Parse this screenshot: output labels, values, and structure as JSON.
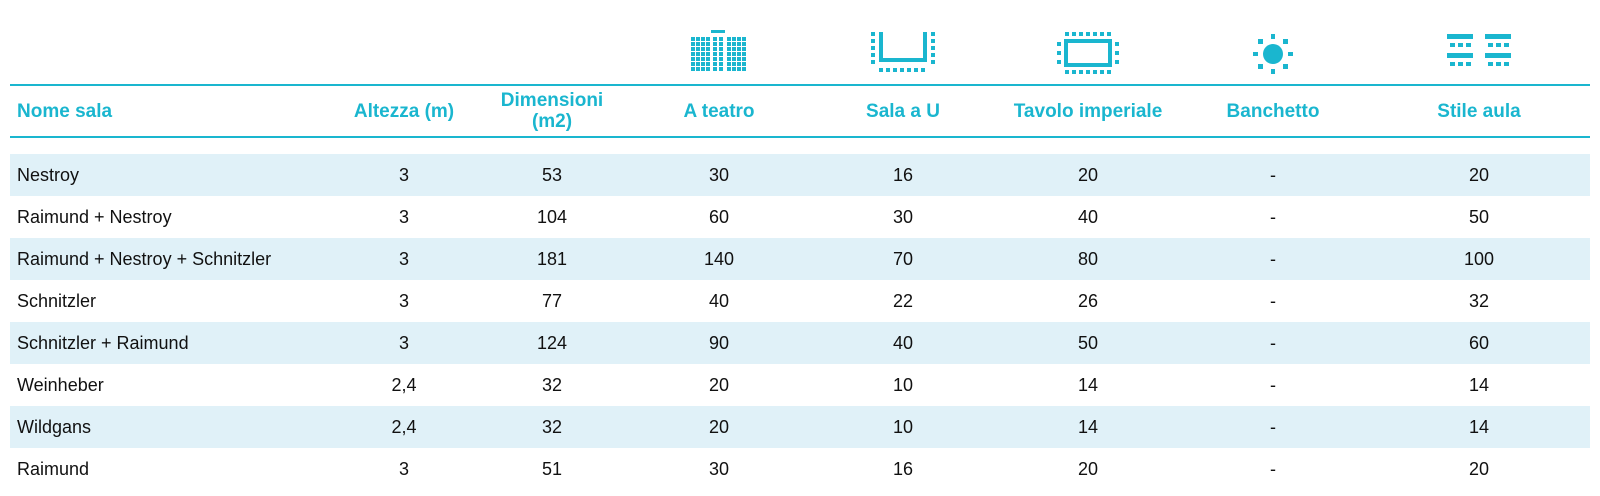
{
  "colors": {
    "accent": "#1ab6cf",
    "stripe": "#e0f1f8"
  },
  "icons": [
    "theatre-icon",
    "u-shape-icon",
    "boardroom-icon",
    "banquet-icon",
    "classroom-icon"
  ],
  "headers": [
    "Nome sala",
    "Altezza (m)",
    "Dimensioni (m2)",
    "A teatro",
    "Sala a U",
    "Tavolo imperiale",
    "Banchetto",
    "Stile aula"
  ],
  "rows": [
    [
      "Nestroy",
      "3",
      "53",
      "30",
      "16",
      "20",
      "-",
      "20"
    ],
    [
      "Raimund + Nestroy",
      "3",
      "104",
      "60",
      "30",
      "40",
      "-",
      "50"
    ],
    [
      "Raimund + Nestroy + Schnitzler",
      "3",
      "181",
      "140",
      "70",
      "80",
      "-",
      "100"
    ],
    [
      "Schnitzler",
      "3",
      "77",
      "40",
      "22",
      "26",
      "-",
      "32"
    ],
    [
      "Schnitzler + Raimund",
      "3",
      "124",
      "90",
      "40",
      "50",
      "-",
      "60"
    ],
    [
      "Weinheber",
      "2,4",
      "32",
      "20",
      "10",
      "14",
      "-",
      "14"
    ],
    [
      "Wildgans",
      "2,4",
      "32",
      "20",
      "10",
      "14",
      "-",
      "14"
    ],
    [
      "Raimund",
      "3",
      "51",
      "30",
      "16",
      "20",
      "-",
      "20"
    ]
  ]
}
